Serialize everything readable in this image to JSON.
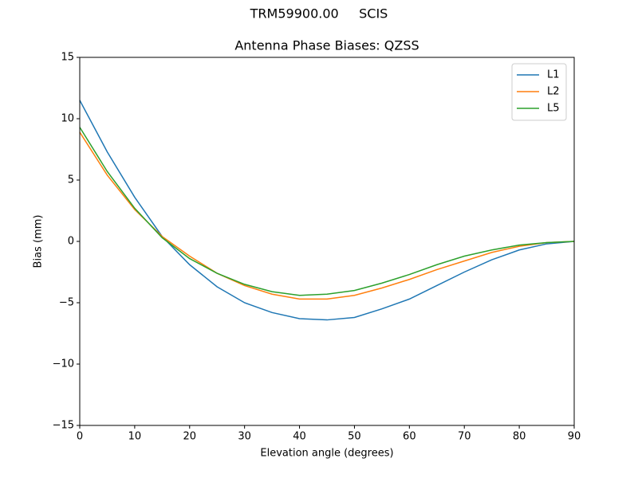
{
  "chart_data": {
    "type": "line",
    "suptitle": "TRM59900.00     SCIS",
    "title": "Antenna Phase Biases: QZSS",
    "x_label": "Elevation angle (degrees)",
    "y_label": "Bias (mm)",
    "x": [
      0,
      5,
      10,
      15,
      20,
      25,
      30,
      35,
      40,
      45,
      50,
      55,
      60,
      65,
      70,
      75,
      80,
      85,
      90
    ],
    "series": [
      {
        "name": "L1",
        "color": "#1f77b4",
        "values": [
          11.5,
          7.3,
          3.6,
          0.4,
          -1.9,
          -3.7,
          -5.0,
          -5.8,
          -6.3,
          -6.4,
          -6.2,
          -5.5,
          -4.7,
          -3.6,
          -2.5,
          -1.5,
          -0.7,
          -0.2,
          0
        ]
      },
      {
        "name": "L2",
        "color": "#ff7f0e",
        "values": [
          8.9,
          5.4,
          2.6,
          0.4,
          -1.2,
          -2.6,
          -3.6,
          -4.3,
          -4.7,
          -4.7,
          -4.4,
          -3.8,
          -3.1,
          -2.3,
          -1.6,
          -0.9,
          -0.4,
          -0.1,
          0
        ]
      },
      {
        "name": "L5",
        "color": "#2ca02c",
        "values": [
          9.3,
          5.7,
          2.7,
          0.3,
          -1.4,
          -2.6,
          -3.5,
          -4.1,
          -4.4,
          -4.3,
          -4.0,
          -3.4,
          -2.7,
          -1.9,
          -1.2,
          -0.7,
          -0.3,
          -0.1,
          0
        ]
      }
    ],
    "xlim": [
      0,
      90
    ],
    "ylim": [
      -15,
      15
    ],
    "xticks": [
      0,
      10,
      20,
      30,
      40,
      50,
      60,
      70,
      80,
      90
    ],
    "yticks": [
      {
        "value": -15,
        "label": "−15"
      },
      {
        "value": -10,
        "label": "−10"
      },
      {
        "value": -5,
        "label": "−5"
      },
      0,
      5,
      10,
      15
    ],
    "grid": false,
    "legend": "upper-right"
  }
}
